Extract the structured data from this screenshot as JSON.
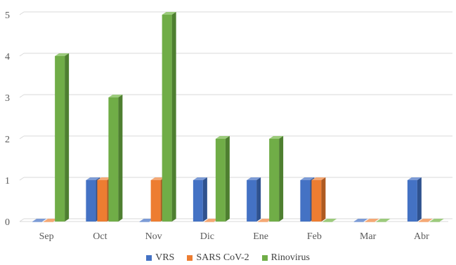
{
  "chart_data": {
    "type": "bar",
    "categories": [
      "Sep",
      "Oct",
      "Nov",
      "Dic",
      "Ene",
      "Feb",
      "Mar",
      "Abr"
    ],
    "series": [
      {
        "name": "VRS",
        "values": [
          0,
          1,
          0,
          1,
          1,
          1,
          0,
          1
        ],
        "color": "#4472C4",
        "side_color": "#2F528F",
        "top_color": "#7C9BD6"
      },
      {
        "name": "SARS CoV-2",
        "values": [
          0,
          1,
          1,
          0,
          0,
          1,
          0,
          0
        ],
        "color": "#ED7D31",
        "side_color": "#AE5A21",
        "top_color": "#F4A875"
      },
      {
        "name": "Rinovirus",
        "values": [
          4,
          3,
          5,
          2,
          2,
          0,
          0,
          0
        ],
        "color": "#70AD47",
        "side_color": "#4E7F30",
        "top_color": "#9CCB7C"
      }
    ],
    "y_ticks": [
      "0",
      "1",
      "2",
      "3",
      "4",
      "5"
    ],
    "ylim": [
      0,
      5
    ],
    "grid": true,
    "legend": "bottom",
    "style": "3d-clustered-column"
  }
}
